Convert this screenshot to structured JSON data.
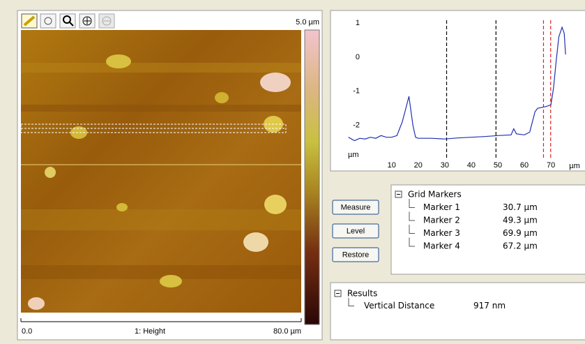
{
  "image_panel": {
    "scale_max": "5.0 µm",
    "scale_start": "0.0",
    "channel": "1: Height",
    "scale_end": "80.0 µm"
  },
  "chart_data": {
    "type": "line",
    "x": [
      -6.3,
      -4,
      -2,
      0,
      2,
      4,
      6,
      8,
      10,
      12,
      13,
      14,
      15,
      16.5,
      18,
      19,
      20,
      25,
      30,
      35,
      40,
      45,
      50,
      55,
      56,
      57,
      60,
      62,
      63,
      64,
      65,
      68,
      70,
      71,
      72,
      73,
      74.2,
      75,
      75.5
    ],
    "values": [
      -2.35,
      -2.45,
      -2.38,
      -2.4,
      -2.35,
      -2.38,
      -2.3,
      -2.35,
      -2.35,
      -2.3,
      -2.1,
      -1.9,
      -1.6,
      -1.15,
      -2.0,
      -2.35,
      -2.38,
      -2.38,
      -2.4,
      -2.37,
      -2.35,
      -2.33,
      -2.3,
      -2.28,
      -2.1,
      -2.25,
      -2.28,
      -2.2,
      -1.9,
      -1.6,
      -1.5,
      -1.45,
      -1.4,
      -0.9,
      -0.1,
      0.6,
      0.88,
      0.7,
      0.08
    ],
    "color": "#2030b0",
    "xlim": [
      -7,
      81
    ],
    "ylim": [
      -2.95,
      1.25
    ],
    "xticks": [
      10,
      20,
      30,
      40,
      50,
      60,
      70
    ],
    "yticks": [
      1,
      0,
      -1,
      -2
    ],
    "xlabel": "µm",
    "ylabel": "µm",
    "vlines": [
      30.7,
      49.3,
      69.9,
      67.2
    ],
    "vline_colors": [
      "#000000",
      "#000000",
      "#e02020",
      "#e02020"
    ]
  },
  "buttons": [
    "Measure",
    "Level",
    "Restore"
  ],
  "grid_markers": {
    "title": "Grid Markers",
    "items": [
      {
        "name": "Marker 1",
        "value": "30.7 µm"
      },
      {
        "name": "Marker 2",
        "value": "49.3 µm"
      },
      {
        "name": "Marker 3",
        "value": "69.9 µm"
      },
      {
        "name": "Marker 4",
        "value": "67.2 µm"
      }
    ]
  },
  "results": {
    "title": "Results",
    "items": [
      {
        "name": "Vertical Distance",
        "value": "917 nm"
      }
    ]
  }
}
